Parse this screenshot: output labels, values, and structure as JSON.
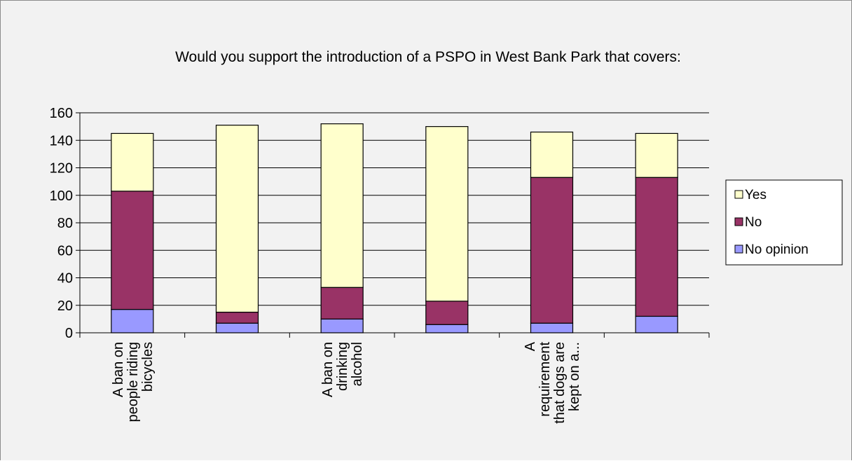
{
  "chart_data": {
    "type": "bar",
    "stacked": true,
    "title": "Would you support the introduction of a PSPO in West Bank Park that covers:",
    "xlabel": "",
    "ylabel": "",
    "ylim": [
      0,
      160
    ],
    "yticks": [
      0,
      20,
      40,
      60,
      80,
      100,
      120,
      140,
      160
    ],
    "grid": true,
    "legend_position": "right",
    "categories": [
      [
        "A ban on",
        "people riding",
        "bicycles"
      ],
      [],
      [
        "A ban on",
        "drinking",
        "alcohol"
      ],
      [],
      [
        "A",
        "requirement",
        "that dogs are",
        "kept on a..."
      ],
      []
    ],
    "series": [
      {
        "name": "No opinion",
        "color": "#9999ff",
        "values": [
          17,
          7,
          10,
          6,
          7,
          12
        ]
      },
      {
        "name": "No",
        "color": "#993366",
        "values": [
          86,
          8,
          23,
          17,
          106,
          101
        ]
      },
      {
        "name": "Yes",
        "color": "#ffffcc",
        "values": [
          42,
          136,
          119,
          127,
          33,
          32
        ]
      }
    ],
    "legend_order": [
      "Yes",
      "No",
      "No opinion"
    ]
  }
}
